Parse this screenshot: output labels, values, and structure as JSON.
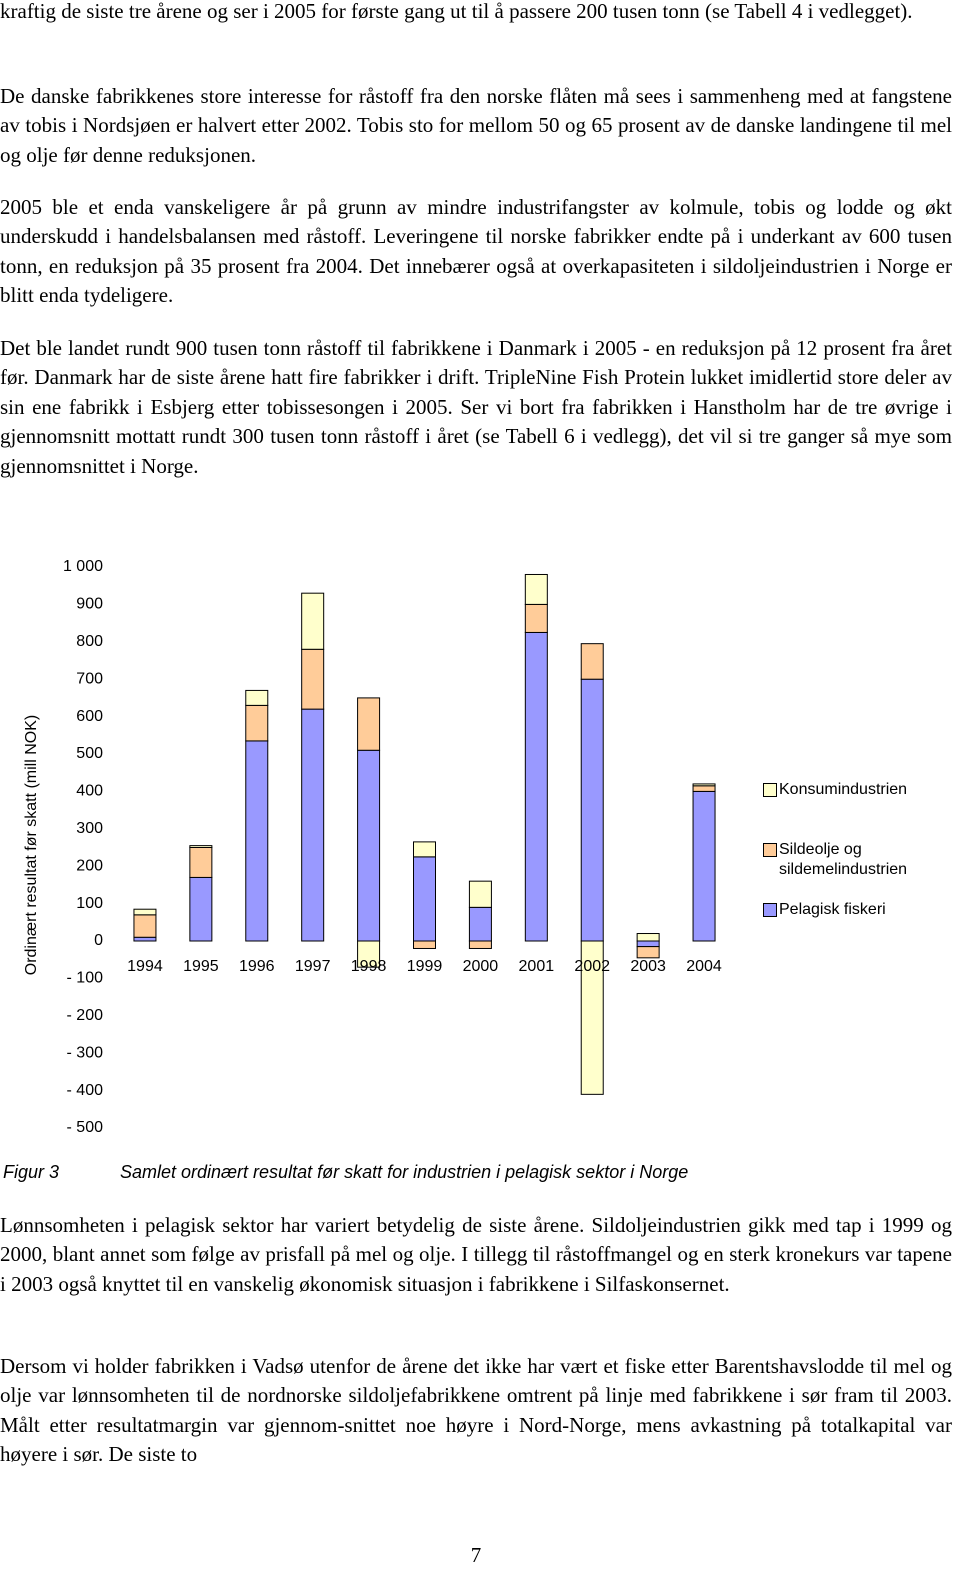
{
  "paragraphs_before": [
    "kraftig de siste tre årene og ser i 2005 for første gang ut til å passere 200 tusen tonn (se Tabell 4 i vedlegget).",
    "De danske fabrikkenes store interesse for råstoff fra den norske flåten må sees i sammenheng med at fangstene av tobis i Nordsjøen er halvert etter 2002. Tobis sto for mellom 50 og 65 prosent av de danske landingene til mel og olje før denne reduksjonen.",
    "2005 ble et enda vanskeligere år på grunn av mindre industrifangster av kolmule, tobis og lodde og økt underskudd i handelsbalansen med råstoff. Leveringene til norske fabrikker endte på i underkant av 600 tusen tonn, en reduksjon på 35 prosent fra 2004. Det innebærer også at overkapasiteten i sildoljeindustrien i Norge er blitt enda tydeligere.",
    "Det ble landet rundt 900 tusen tonn råstoff til fabrikkene i Danmark i 2005 - en reduksjon på 12 prosent fra året før. Danmark har de siste årene hatt fire fabrikker i drift. TripleNine Fish Protein lukket imidlertid store deler av sin ene fabrikk i Esbjerg etter tobissesongen i 2005. Ser vi bort fra fabrikken i Hanstholm har de tre øvrige i gjennomsnitt mottatt rundt 300 tusen tonn råstoff i året (se Tabell 6 i vedlegg), det vil si tre ganger så mye som gjennomsnittet i Norge."
  ],
  "chart_data": {
    "type": "bar",
    "stacked": true,
    "y_axis_label": "Ordinært resultat før skatt (mill NOK)",
    "categories": [
      "1994",
      "1995",
      "1996",
      "1997",
      "1998",
      "1999",
      "2000",
      "2001",
      "2002",
      "2003",
      "2004"
    ],
    "series": [
      {
        "name": "Pelagisk fiskeri",
        "color": "#9999ff",
        "values": [
          10,
          170,
          535,
          620,
          510,
          225,
          90,
          825,
          700,
          -15,
          400
        ]
      },
      {
        "name": "Sildeolje og sildemelindustrien",
        "color": "#ffcc99",
        "values": [
          60,
          80,
          95,
          160,
          140,
          -20,
          -20,
          75,
          95,
          -30,
          15
        ]
      },
      {
        "name": "Konsumindustrien",
        "color": "#ffffcc",
        "values": [
          15,
          5,
          40,
          150,
          -70,
          40,
          70,
          80,
          -410,
          20,
          5
        ]
      }
    ],
    "ylim": [
      -500,
      1000
    ],
    "yticks": [
      {
        "value": -500,
        "label": "- 500"
      },
      {
        "value": -400,
        "label": "- 400"
      },
      {
        "value": -300,
        "label": "- 300"
      },
      {
        "value": -200,
        "label": "- 200"
      },
      {
        "value": -100,
        "label": "- 100"
      },
      0,
      100,
      200,
      300,
      400,
      500,
      600,
      700,
      800,
      900,
      {
        "value": 1000,
        "label": "1 000"
      }
    ],
    "grid": false,
    "legend": "right"
  },
  "figure": {
    "number": "Figur 3",
    "caption": "Samlet ordinært resultat før skatt for industrien i pelagisk sektor i Norge"
  },
  "paragraphs_after": [
    "Lønnsomheten i pelagisk sektor har variert betydelig de siste årene. Sildoljeindustrien gikk med tap i 1999 og 2000, blant annet som følge av prisfall på mel og olje. I tillegg til råstoffmangel og en sterk kronekurs var tapene i 2003 også knyttet til en vanskelig økonomisk situasjon i fabrikkene i Silfaskonsernet.",
    "Dersom vi holder fabrikken i Vadsø utenfor de årene det ikke har vært et fiske etter Barentshavslodde til mel og olje var lønnsomheten til de nordnorske sildoljefabrikkene omtrent på linje med fabrikkene i sør fram til 2003. Målt etter resultatmargin var gjennom-snittet noe høyre i Nord-Norge, mens avkastning på totalkapital var høyere i sør. De siste to"
  ],
  "page_number": "7"
}
